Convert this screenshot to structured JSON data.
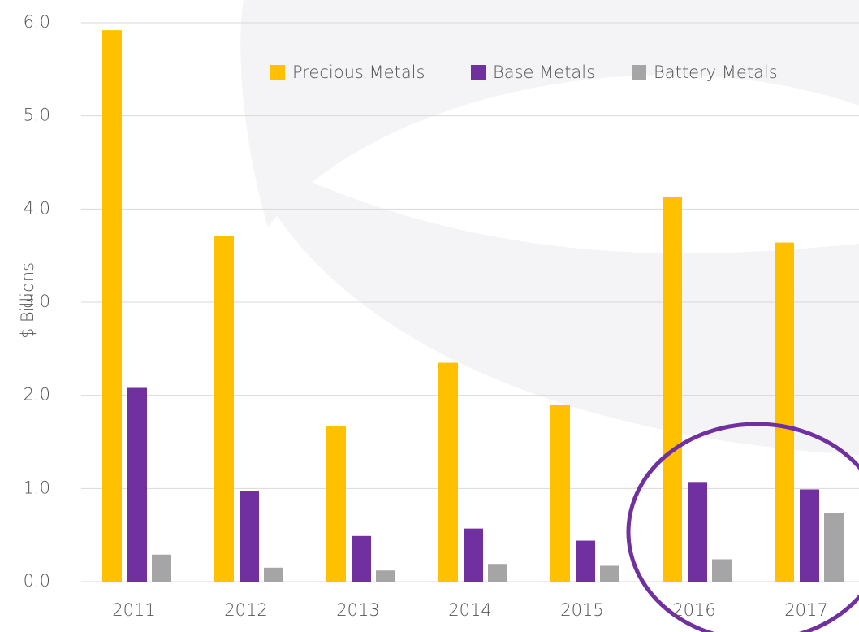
{
  "chart_data": {
    "type": "bar",
    "y_label": "$ Billions",
    "categories": [
      "2011",
      "2012",
      "2013",
      "2014",
      "2015",
      "2016",
      "2017"
    ],
    "series": [
      {
        "name": "Precious Metals",
        "color": "#ffc000",
        "values": [
          5.92,
          3.71,
          1.67,
          2.35,
          1.9,
          4.13,
          3.64
        ]
      },
      {
        "name": "Base Metals",
        "color": "#7030a0",
        "values": [
          2.08,
          0.97,
          0.49,
          0.57,
          0.44,
          1.07,
          0.99
        ]
      },
      {
        "name": "Battery Metals",
        "color": "#a5a5a5",
        "values": [
          0.29,
          0.15,
          0.12,
          0.19,
          0.17,
          0.24,
          0.74
        ]
      }
    ],
    "ylim": [
      0,
      6
    ],
    "yticks": [
      {
        "value": 0,
        "label": "0.0"
      },
      {
        "value": 1,
        "label": "1.0"
      },
      {
        "value": 2,
        "label": "2.0"
      },
      {
        "value": 3,
        "label": "3.0"
      },
      {
        "value": 4,
        "label": "4.0"
      },
      {
        "value": 5,
        "label": "5.0"
      },
      {
        "value": 6,
        "label": "6.0"
      }
    ],
    "grid": true,
    "legend": "top-right"
  }
}
